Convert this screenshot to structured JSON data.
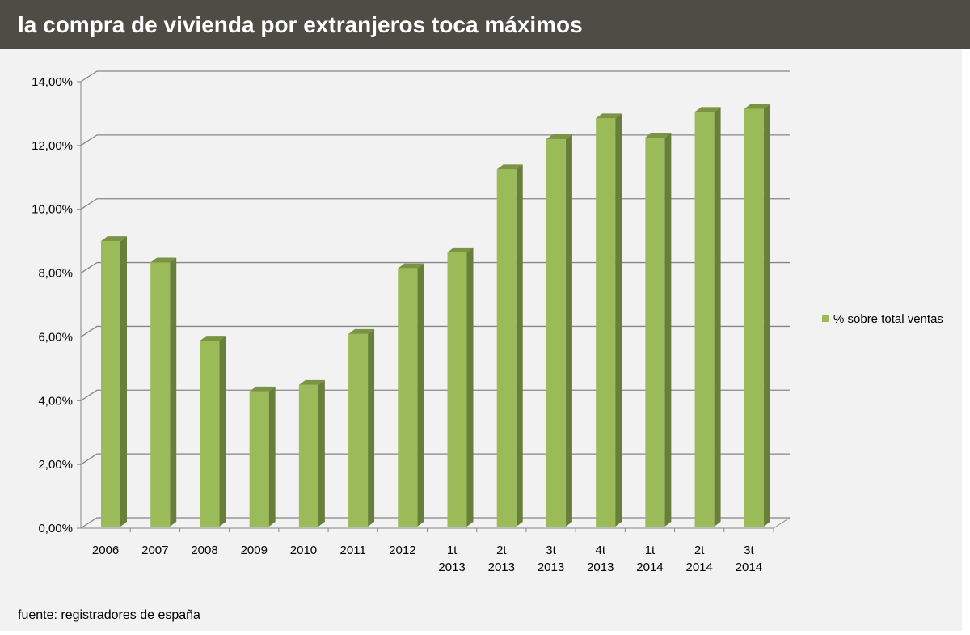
{
  "title": "la compra de vivienda por extranjeros toca máximos",
  "source": "fuente: registradores de españa",
  "chart_data": {
    "type": "bar",
    "title": "",
    "xlabel": "",
    "ylabel": "",
    "categories": [
      "2006",
      "2007",
      "2008",
      "2009",
      "2010",
      "2011",
      "2012",
      "1t 2013",
      "2t 2013",
      "3t 2013",
      "4t 2013",
      "1t 2014",
      "2t 2014",
      "3t 2014"
    ],
    "series": [
      {
        "name": "% sobre total ventas",
        "values": [
          8.95,
          8.28,
          5.83,
          4.24,
          4.44,
          6.04,
          8.1,
          8.6,
          11.2,
          12.15,
          12.8,
          12.2,
          13.0,
          13.1
        ],
        "color": "#9bbb59"
      }
    ],
    "ylim": [
      0,
      14
    ],
    "yticks": [
      "0,00%",
      "2,00%",
      "4,00%",
      "6,00%",
      "8,00%",
      "10,00%",
      "12,00%",
      "14,00%"
    ],
    "grid": true,
    "legend": "right",
    "style": "3d-column"
  }
}
